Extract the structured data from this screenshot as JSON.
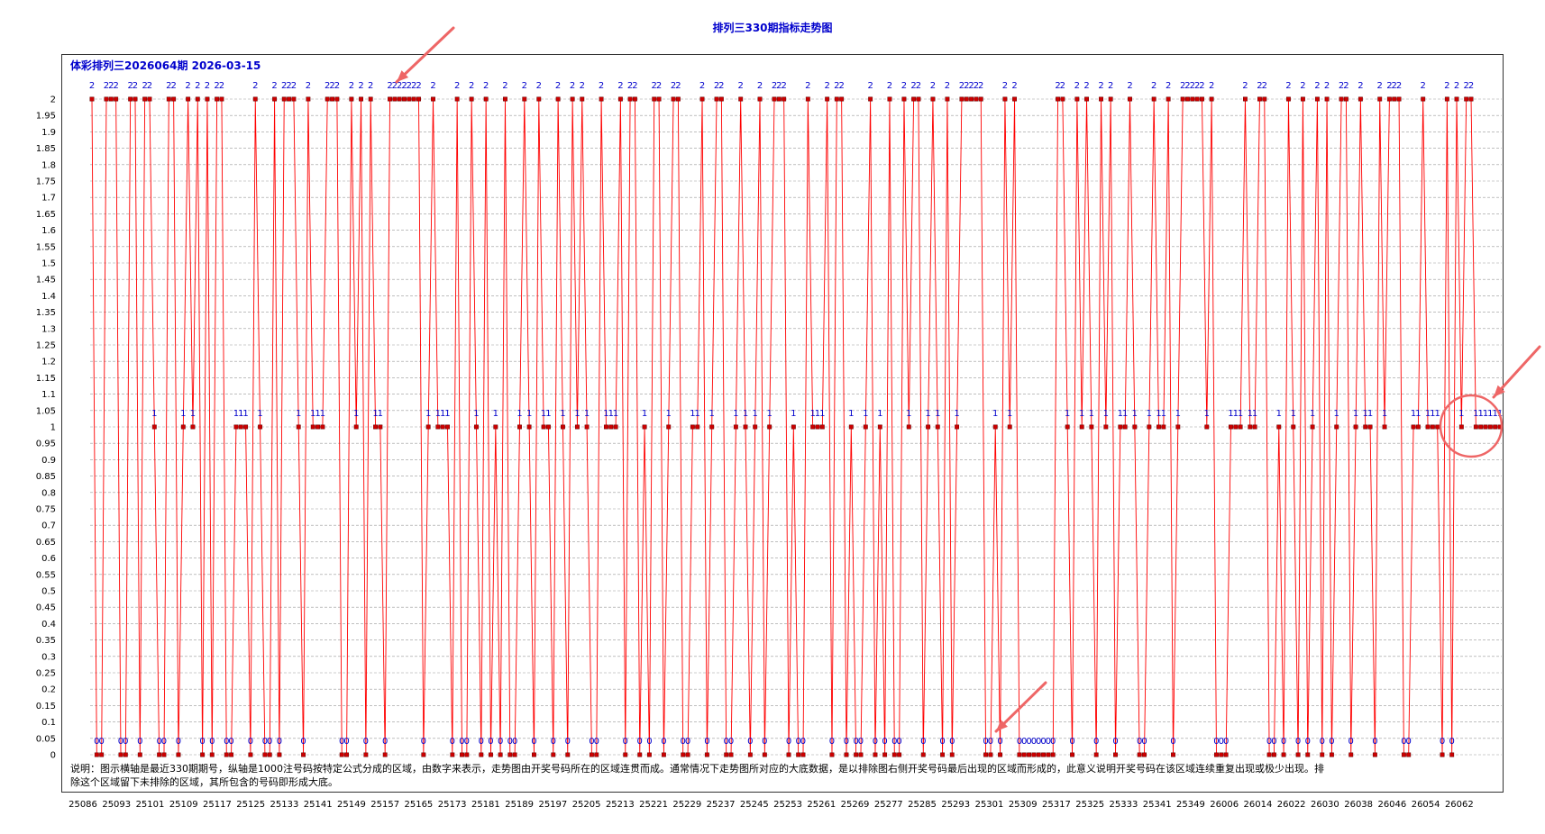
{
  "page_title": "排列三330期指标走势图",
  "sub_title": "体彩排列三2026064期 2026-03-15",
  "note": "说明：图示横轴是最近330期期号，纵轴是1000注号码按特定公式分成的区域，由数字来表示，走势图由开奖号码所在的区域连贯而成。通常情况下走势图所对应的大底数据，是以排除图右侧开奖号码最后出现的区域而形成的，此意义说明开奖号码在该区域连续重复出现或极少出现。排除这个区域留下未排除的区域，其所包含的号码即形成大底。",
  "colors": {
    "line": "#ff0000",
    "marker": "#cc0000",
    "label": "#0000cc",
    "grid": "#999999",
    "annotation": "#ee6666"
  },
  "chart_data": {
    "type": "line",
    "title": "排列三330期指标走势图",
    "xlabel": "",
    "ylabel": "",
    "ylim": [
      0,
      2
    ],
    "y_step": 0.05,
    "grid": true,
    "x_tick_labels": [
      "25086",
      "25093",
      "25101",
      "25109",
      "25117",
      "25125",
      "25133",
      "25141",
      "25149",
      "25157",
      "25165",
      "25173",
      "25181",
      "25189",
      "25197",
      "25205",
      "25213",
      "25221",
      "25229",
      "25237",
      "25245",
      "25253",
      "25261",
      "25269",
      "25277",
      "25285",
      "25293",
      "25301",
      "25309",
      "25317",
      "25325",
      "25333",
      "25341",
      "25349",
      "26006",
      "26014",
      "26022",
      "26030",
      "26038",
      "26046",
      "26054",
      "26062"
    ],
    "series": [
      {
        "name": "区域",
        "values": [
          2,
          0,
          0,
          2,
          2,
          2,
          0,
          0,
          2,
          2,
          0,
          2,
          2,
          1,
          0,
          0,
          2,
          2,
          0,
          1,
          2,
          1,
          2,
          0,
          2,
          0,
          2,
          2,
          0,
          0,
          1,
          1,
          1,
          0,
          2,
          1,
          0,
          0,
          2,
          0,
          2,
          2,
          2,
          1,
          0,
          2,
          1,
          1,
          1,
          2,
          2,
          2,
          0,
          0,
          2,
          1,
          2,
          0,
          2,
          1,
          1,
          0,
          2,
          2,
          2,
          2,
          2,
          2,
          2,
          0,
          1,
          2,
          1,
          1,
          1,
          0,
          2,
          0,
          0,
          2,
          1,
          0,
          2,
          0,
          1,
          0,
          2,
          0,
          0,
          1,
          2,
          1,
          0,
          2,
          1,
          1,
          0,
          2,
          1,
          0,
          2,
          1,
          2,
          1,
          0,
          0,
          2,
          1,
          1,
          1,
          2,
          0,
          2,
          2,
          0,
          1,
          0,
          2,
          2,
          0,
          1,
          2,
          2,
          0,
          0,
          1,
          1,
          2,
          0,
          1,
          2,
          2,
          0,
          0,
          1,
          2,
          1,
          0,
          1,
          2,
          0,
          1,
          2,
          2,
          2,
          0,
          1,
          0,
          0,
          2,
          1,
          1,
          1,
          2,
          0,
          2,
          2,
          0,
          1,
          0,
          0,
          1,
          2,
          0,
          1,
          0,
          2,
          0,
          0,
          2,
          1,
          2,
          2,
          0,
          1,
          2,
          1,
          0,
          2,
          0,
          1,
          2,
          2,
          2,
          2,
          2,
          0,
          0,
          1,
          0,
          2,
          1,
          2,
          0,
          0,
          0,
          0,
          0,
          0,
          0,
          0,
          2,
          2,
          1,
          0,
          2,
          1,
          2,
          1,
          0,
          2,
          1,
          2,
          0,
          1,
          1,
          2,
          1,
          0,
          0,
          1,
          2,
          1,
          1,
          2,
          0,
          1,
          2,
          2,
          2,
          2,
          2,
          1,
          2,
          0,
          0,
          0,
          1,
          1,
          1,
          2,
          1,
          1,
          2,
          2,
          0,
          0,
          1,
          0,
          2,
          1,
          0,
          2,
          0,
          1,
          2,
          0,
          2,
          0,
          1,
          2,
          2,
          0,
          1,
          2,
          1,
          1,
          0,
          2,
          1,
          2,
          2,
          2,
          0,
          0,
          1,
          1,
          2,
          1,
          1,
          1,
          0,
          2,
          0,
          2,
          1,
          2,
          2,
          1,
          1,
          1,
          1,
          1,
          1
        ]
      }
    ],
    "annotations": [
      "arrow-top",
      "arrow-bottom",
      "circle-right",
      "arrow-right"
    ]
  }
}
